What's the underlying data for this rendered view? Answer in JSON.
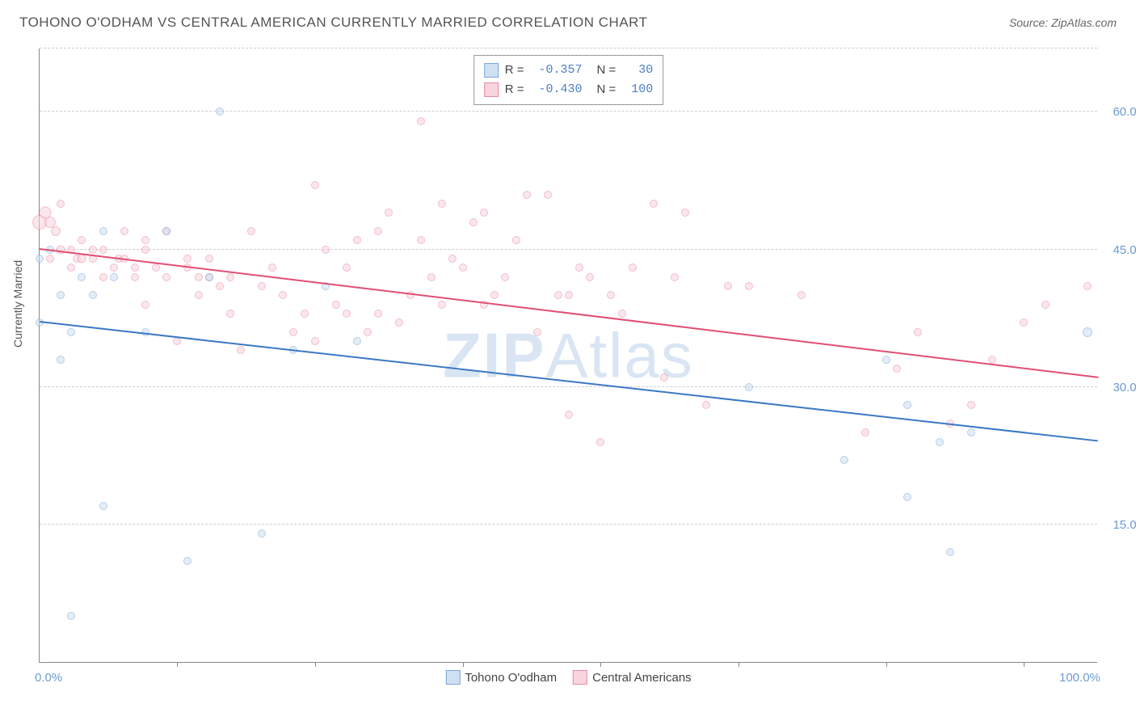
{
  "title": "TOHONO O'ODHAM VS CENTRAL AMERICAN CURRENTLY MARRIED CORRELATION CHART",
  "source": "Source: ZipAtlas.com",
  "ylabel": "Currently Married",
  "watermark_a": "ZIP",
  "watermark_b": "Atlas",
  "chart": {
    "type": "scatter",
    "xlim": [
      0,
      100
    ],
    "ylim": [
      0,
      67
    ],
    "x_ticks": [
      0,
      100
    ],
    "x_tick_labels": [
      "0.0%",
      "100.0%"
    ],
    "x_minor_ticks": [
      13,
      26,
      40,
      53,
      66,
      80,
      93
    ],
    "y_ticks": [
      15,
      30,
      45,
      60
    ],
    "y_tick_labels": [
      "15.0%",
      "30.0%",
      "45.0%",
      "60.0%"
    ],
    "grid_color": "#cccccc",
    "axis_color": "#888888",
    "background": "#ffffff"
  },
  "series": [
    {
      "name": "Tohono O'odham",
      "fill": "#cfe0f2",
      "stroke": "#7aa8d8",
      "fill_opacity": 0.55,
      "R": "-0.357",
      "N": "30",
      "trend": {
        "x1": 0,
        "y1": 37,
        "x2": 100,
        "y2": 24,
        "color": "#3b78c4",
        "width": 2
      },
      "points": [
        [
          0,
          44,
          10
        ],
        [
          1,
          45,
          10
        ],
        [
          0,
          37,
          10
        ],
        [
          2,
          33,
          10
        ],
        [
          3,
          36,
          10
        ],
        [
          4,
          42,
          10
        ],
        [
          5,
          40,
          10
        ],
        [
          7,
          42,
          10
        ],
        [
          6,
          47,
          10
        ],
        [
          10,
          36,
          10
        ],
        [
          12,
          47,
          10
        ],
        [
          17,
          60,
          10
        ],
        [
          6,
          17,
          10
        ],
        [
          3,
          5,
          10
        ],
        [
          14,
          11,
          10
        ],
        [
          16,
          42,
          10
        ],
        [
          21,
          14,
          10
        ],
        [
          24,
          34,
          10
        ],
        [
          27,
          41,
          10
        ],
        [
          30,
          35,
          10
        ],
        [
          67,
          30,
          10
        ],
        [
          76,
          22,
          10
        ],
        [
          82,
          18,
          10
        ],
        [
          85,
          24,
          10
        ],
        [
          88,
          25,
          10
        ],
        [
          86,
          12,
          10
        ],
        [
          80,
          33,
          10
        ],
        [
          82,
          28,
          10
        ],
        [
          99,
          36,
          12
        ],
        [
          2,
          40,
          10
        ]
      ]
    },
    {
      "name": "Central Americans",
      "fill": "#f8d4dc",
      "stroke": "#e88ba2",
      "fill_opacity": 0.55,
      "R": "-0.430",
      "N": "100",
      "trend": {
        "x1": 0,
        "y1": 45,
        "x2": 100,
        "y2": 31,
        "color": "#e24e73",
        "width": 2
      },
      "points": [
        [
          0,
          48,
          18
        ],
        [
          0.5,
          49,
          15
        ],
        [
          1,
          48,
          14
        ],
        [
          1.5,
          47,
          12
        ],
        [
          1,
          44,
          10
        ],
        [
          2,
          45,
          11
        ],
        [
          2,
          50,
          10
        ],
        [
          3,
          45,
          10
        ],
        [
          3,
          43,
          10
        ],
        [
          3.5,
          44,
          10
        ],
        [
          4,
          44,
          11
        ],
        [
          4,
          46,
          10
        ],
        [
          5,
          44,
          10
        ],
        [
          5,
          45,
          10
        ],
        [
          6,
          45,
          10
        ],
        [
          6,
          42,
          10
        ],
        [
          7,
          43,
          10
        ],
        [
          7.5,
          44,
          10
        ],
        [
          8,
          44,
          10
        ],
        [
          8,
          47,
          10
        ],
        [
          9,
          42,
          10
        ],
        [
          9,
          43,
          10
        ],
        [
          10,
          39,
          10
        ],
        [
          10,
          45,
          10
        ],
        [
          10,
          46,
          10
        ],
        [
          11,
          43,
          10
        ],
        [
          12,
          42,
          10
        ],
        [
          12,
          47,
          10
        ],
        [
          13,
          35,
          10
        ],
        [
          14,
          43,
          10
        ],
        [
          14,
          44,
          10
        ],
        [
          15,
          40,
          10
        ],
        [
          15,
          42,
          10
        ],
        [
          16,
          44,
          10
        ],
        [
          16,
          42,
          10
        ],
        [
          17,
          41,
          10
        ],
        [
          18,
          38,
          10
        ],
        [
          18,
          42,
          10
        ],
        [
          19,
          34,
          10
        ],
        [
          20,
          47,
          10
        ],
        [
          21,
          41,
          10
        ],
        [
          22,
          43,
          10
        ],
        [
          23,
          40,
          10
        ],
        [
          24,
          36,
          10
        ],
        [
          25,
          38,
          10
        ],
        [
          26,
          52,
          10
        ],
        [
          26,
          35,
          10
        ],
        [
          27,
          45,
          10
        ],
        [
          28,
          39,
          10
        ],
        [
          29,
          38,
          10
        ],
        [
          29,
          43,
          10
        ],
        [
          30,
          46,
          10
        ],
        [
          31,
          36,
          10
        ],
        [
          32,
          47,
          10
        ],
        [
          32,
          38,
          10
        ],
        [
          33,
          49,
          10
        ],
        [
          34,
          37,
          10
        ],
        [
          35,
          40,
          10
        ],
        [
          36,
          46,
          10
        ],
        [
          36,
          59,
          10
        ],
        [
          37,
          42,
          10
        ],
        [
          38,
          50,
          10
        ],
        [
          38,
          39,
          10
        ],
        [
          39,
          44,
          10
        ],
        [
          40,
          43,
          10
        ],
        [
          41,
          48,
          10
        ],
        [
          42,
          49,
          10
        ],
        [
          42,
          39,
          10
        ],
        [
          43,
          40,
          10
        ],
        [
          44,
          42,
          10
        ],
        [
          45,
          46,
          10
        ],
        [
          46,
          51,
          10
        ],
        [
          47,
          36,
          10
        ],
        [
          48,
          51,
          10
        ],
        [
          49,
          40,
          10
        ],
        [
          50,
          27,
          10
        ],
        [
          50,
          40,
          10
        ],
        [
          51,
          43,
          10
        ],
        [
          53,
          24,
          10
        ],
        [
          54,
          40,
          10
        ],
        [
          56,
          43,
          10
        ],
        [
          58,
          50,
          10
        ],
        [
          59,
          31,
          10
        ],
        [
          60,
          42,
          10
        ],
        [
          61,
          49,
          10
        ],
        [
          63,
          28,
          10
        ],
        [
          65,
          41,
          10
        ],
        [
          67,
          41,
          10
        ],
        [
          72,
          40,
          10
        ],
        [
          78,
          25,
          10
        ],
        [
          81,
          32,
          10
        ],
        [
          83,
          36,
          10
        ],
        [
          86,
          26,
          10
        ],
        [
          88,
          28,
          10
        ],
        [
          90,
          33,
          10
        ],
        [
          93,
          37,
          10
        ],
        [
          95,
          39,
          10
        ],
        [
          99,
          41,
          10
        ],
        [
          52,
          42,
          10
        ],
        [
          55,
          38,
          10
        ]
      ]
    }
  ],
  "legend_bottom": [
    {
      "label": "Tohono O'odham",
      "fill": "#cfe0f2",
      "stroke": "#7aa8d8"
    },
    {
      "label": "Central Americans",
      "fill": "#f8d4dc",
      "stroke": "#e88ba2"
    }
  ]
}
